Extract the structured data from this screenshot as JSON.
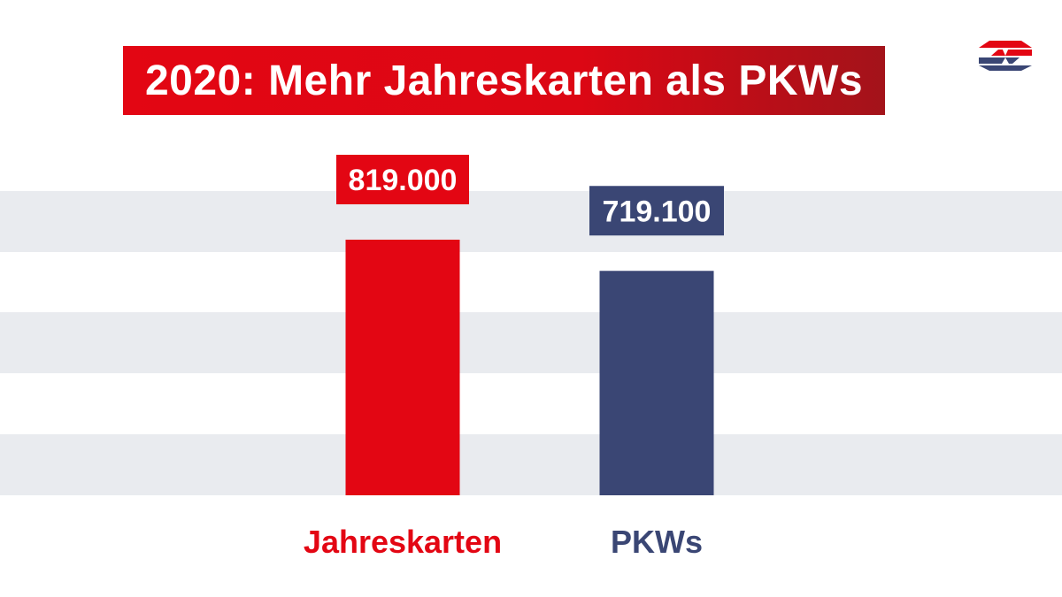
{
  "title": "2020: Mehr Jahreskarten als PKWs",
  "colors": {
    "title_bg": "#e30613",
    "jahreskarten": "#e30613",
    "pkws": "#3a4674",
    "stripe": "#e9ebef"
  },
  "logo": {
    "icon": "wiener-linien-logo-icon"
  },
  "chart_data": {
    "type": "bar",
    "title": "2020: Mehr Jahreskarten als PKWs",
    "categories": [
      "Jahreskarten",
      "PKWs"
    ],
    "values": [
      819000,
      719100
    ],
    "value_labels": [
      "819.000",
      "719.100"
    ],
    "colors": [
      "#e30613",
      "#3a4674"
    ],
    "xlabel": "",
    "ylabel": "",
    "ylim": [
      0,
      1000000
    ],
    "grid": true,
    "legend": false
  }
}
